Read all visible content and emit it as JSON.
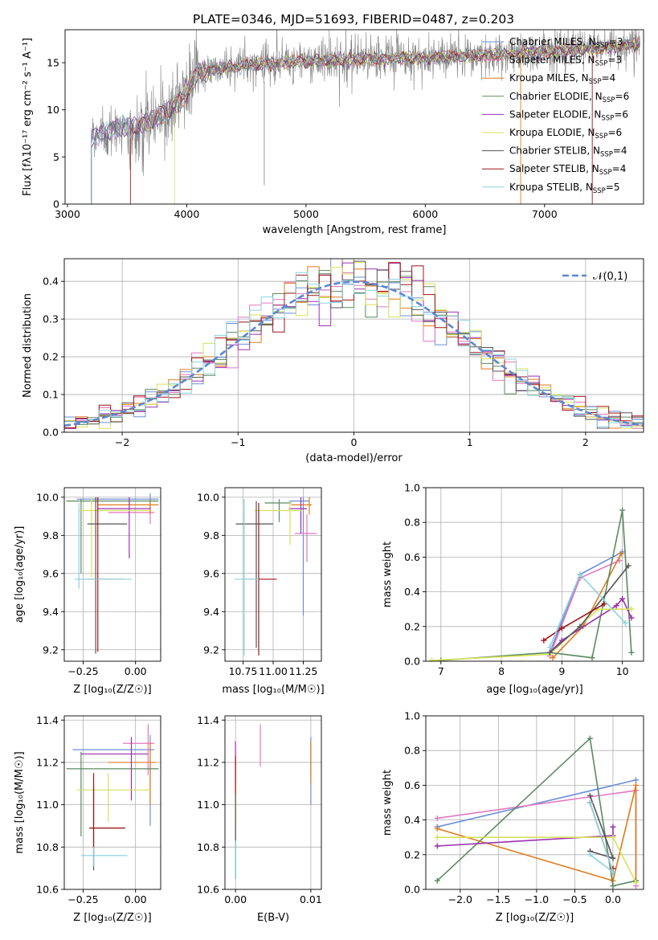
{
  "figure_title": "PLATE=0346, MJD=51693, FIBERID=0487, z=0.203",
  "legend_models": [
    {
      "name": "Chabrier MILES",
      "nssp": "3",
      "color": "#6a8fd8"
    },
    {
      "name": "Salpeter MILES",
      "nssp": "3",
      "color": "#e377c2"
    },
    {
      "name": "Kroupa MILES",
      "nssp": "4",
      "color": "#e07b1a"
    },
    {
      "name": "Chabrier ELODIE",
      "nssp": "6",
      "color": "#5b8a60"
    },
    {
      "name": "Salpeter ELODIE",
      "nssp": "6",
      "color": "#9b30b0"
    },
    {
      "name": "Kroupa ELODIE",
      "nssp": "6",
      "color": "#d7e05a"
    },
    {
      "name": "Chabrier STELIB",
      "nssp": "4",
      "color": "#555555"
    },
    {
      "name": "Salpeter STELIB",
      "nssp": "4",
      "color": "#a01515"
    },
    {
      "name": "Kroupa STELIB",
      "nssp": "5",
      "color": "#8bd3e0"
    }
  ],
  "nssp_prefix": "N",
  "nssp_sub": "SSP",
  "chart_data": [
    {
      "id": "spectrum",
      "type": "line",
      "xlabel": "wavelength [Angstrom, rest frame]",
      "ylabel": "Flux [f_λ 10^-17 erg cm^-2 s^-1 A^-1]",
      "xlim": [
        2980,
        7830
      ],
      "ylim": [
        0,
        18.5
      ],
      "xticks": [
        3000,
        4000,
        5000,
        6000,
        7000
      ],
      "yticks": [
        0,
        5,
        10,
        15
      ],
      "continuum_x": [
        3200,
        3400,
        3600,
        3800,
        3950,
        4100,
        4500,
        5000,
        5500,
        6000,
        6500,
        7000,
        7400,
        7800
      ],
      "continuum_y": [
        7.0,
        8.0,
        8.3,
        9.5,
        11.0,
        14.0,
        14.8,
        15.2,
        15.4,
        15.5,
        15.8,
        16.2,
        16.5,
        17.0
      ],
      "data_color": "#808080",
      "model_start_wavelengths": [
        3200,
        3200,
        3530,
        3200,
        3200,
        3900,
        3200,
        3530,
        3200
      ],
      "deep_feature_x": [
        4650
      ],
      "deep_feature_y": [
        2.0
      ]
    },
    {
      "id": "residual_hist",
      "type": "histogram",
      "xlabel": "(data-model)/error",
      "ylabel": "Normed distribution",
      "xlim": [
        -2.5,
        2.5
      ],
      "ylim": [
        0,
        0.46
      ],
      "xticks": [
        -2,
        -1,
        0,
        1,
        2
      ],
      "yticks": [
        0.0,
        0.1,
        0.2,
        0.3,
        0.4
      ],
      "bin_width": 0.1,
      "gaussian_label": "𝒩(0,1)",
      "gaussian_color": "#5b87d6"
    },
    {
      "id": "age_vs_Z",
      "type": "errorbar",
      "xlabel": "Z [log₁₀(Z/Z☉)]",
      "ylabel": "age [log₁₀(age/yr)]",
      "xlim": [
        -0.34,
        0.12
      ],
      "ylim": [
        9.14,
        10.05
      ],
      "xticks": [
        -0.25,
        0.0
      ],
      "xtick_labels": [
        "−0.25",
        "0.00"
      ],
      "yticks": [
        9.2,
        9.4,
        9.6,
        9.8,
        10.0
      ],
      "crosses": [
        {
          "c": 0,
          "x": 0.07,
          "y": 9.99,
          "xe": [
            0.35,
            0.04
          ],
          "ye": [
            0.07,
            0.03
          ]
        },
        {
          "c": 1,
          "x": 0.07,
          "y": 9.92,
          "xe": [
            0.2,
            0.02
          ],
          "ye": [
            0.06,
            0.06
          ]
        },
        {
          "c": 2,
          "x": 0.07,
          "y": 9.96,
          "xe": [
            0.25,
            0.04
          ],
          "ye": [
            0.05,
            0.03
          ]
        },
        {
          "c": 3,
          "x": -0.26,
          "y": 9.98,
          "xe": [
            0.07,
            0.37
          ],
          "ye": [
            0.38,
            0.01
          ]
        },
        {
          "c": 4,
          "x": -0.03,
          "y": 9.94,
          "xe": [
            0.15,
            0.1
          ],
          "ye": [
            0.26,
            0.06
          ]
        },
        {
          "c": 5,
          "x": -0.21,
          "y": 9.93,
          "xe": [
            0.06,
            0.28
          ],
          "ye": [
            0.35,
            0.07
          ]
        },
        {
          "c": 6,
          "x": -0.19,
          "y": 9.86,
          "xe": [
            0.04,
            0.15
          ],
          "ye": [
            0.68,
            0.14
          ]
        },
        {
          "c": 7,
          "x": -0.18,
          "y": 9.57,
          "xe": [
            0.06,
            0.12
          ],
          "ye": [
            0.38,
            0.43
          ]
        },
        {
          "c": 8,
          "x": -0.27,
          "y": 9.57,
          "xe": [
            0.02,
            0.25
          ],
          "ye": [
            0.05,
            0.4
          ]
        }
      ]
    },
    {
      "id": "age_vs_mass",
      "type": "errorbar",
      "xlabel": "mass [log₁₀(M/M☉)]",
      "ylabel": "",
      "xlim": [
        10.6,
        11.4
      ],
      "ylim": [
        9.14,
        10.05
      ],
      "xticks": [
        10.75,
        11.0,
        11.25
      ],
      "xtick_labels": [
        "10.75",
        "11.00",
        "11.25"
      ],
      "yticks": [
        9.2,
        9.4,
        9.6,
        9.8,
        10.0
      ],
      "crosses": [
        {
          "c": 0,
          "x": 11.25,
          "y": 9.98,
          "xe": [
            0.12,
            0.05
          ],
          "ye": [
            0.6,
            0.02
          ]
        },
        {
          "c": 1,
          "x": 11.28,
          "y": 9.81,
          "xe": [
            0.1,
            0.08
          ],
          "ye": [
            0.15,
            0.1
          ]
        },
        {
          "c": 2,
          "x": 11.3,
          "y": 9.96,
          "xe": [
            0.15,
            0.02
          ],
          "ye": [
            0.05,
            0.04
          ]
        },
        {
          "c": 3,
          "x": 11.05,
          "y": 9.97,
          "xe": [
            0.12,
            0.1
          ],
          "ye": [
            0.1,
            0.02
          ]
        },
        {
          "c": 4,
          "x": 11.23,
          "y": 9.94,
          "xe": [
            0.1,
            0.05
          ],
          "ye": [
            0.13,
            0.06
          ]
        },
        {
          "c": 5,
          "x": 11.14,
          "y": 9.93,
          "xe": [
            0.3,
            0.1
          ],
          "ye": [
            0.18,
            0.05
          ]
        },
        {
          "c": 6,
          "x": 10.86,
          "y": 9.86,
          "xe": [
            0.17,
            0.14
          ],
          "ye": [
            0.65,
            0.12
          ]
        },
        {
          "c": 7,
          "x": 10.88,
          "y": 9.57,
          "xe": [
            0.12,
            0.15
          ],
          "ye": [
            0.4,
            0.4
          ]
        },
        {
          "c": 8,
          "x": 10.76,
          "y": 9.57,
          "xe": [
            0.08,
            0.12
          ],
          "ye": [
            0.4,
            0.42
          ]
        }
      ]
    },
    {
      "id": "weight_vs_age",
      "type": "line",
      "xlabel": "age [log₁₀(age/yr)]",
      "ylabel": "mass weight",
      "xlim": [
        6.75,
        10.35
      ],
      "ylim": [
        0,
        1.0
      ],
      "xticks": [
        7,
        8,
        9,
        10
      ],
      "yticks": [
        0.0,
        0.2,
        0.4,
        0.6,
        0.8,
        1.0
      ],
      "series": [
        {
          "c": 0,
          "x": [
            8.8,
            9.3,
            10.0
          ],
          "y": [
            0.05,
            0.5,
            0.63
          ]
        },
        {
          "c": 1,
          "x": [
            8.8,
            9.3,
            9.95
          ],
          "y": [
            0.03,
            0.48,
            0.58
          ]
        },
        {
          "c": 2,
          "x": [
            8.85,
            9.35,
            9.98
          ],
          "y": [
            0.02,
            0.2,
            0.62
          ]
        },
        {
          "c": 3,
          "x": [
            7.0,
            8.8,
            9.5,
            10.0,
            10.15
          ],
          "y": [
            0.005,
            0.05,
            0.02,
            0.87,
            0.05
          ]
        },
        {
          "c": 4,
          "x": [
            8.8,
            9.0,
            9.9,
            10.0,
            10.15
          ],
          "y": [
            0.05,
            0.12,
            0.32,
            0.36,
            0.25
          ]
        },
        {
          "c": 5,
          "x": [
            6.85,
            8.8,
            9.6,
            10.15
          ],
          "y": [
            0.005,
            0.04,
            0.3,
            0.3
          ]
        },
        {
          "c": 6,
          "x": [
            8.8,
            9.3,
            10.1
          ],
          "y": [
            0.05,
            0.2,
            0.55
          ]
        },
        {
          "c": 7,
          "x": [
            8.7,
            9.0,
            9.7
          ],
          "y": [
            0.12,
            0.19,
            0.33
          ]
        },
        {
          "c": 8,
          "x": [
            8.8,
            9.3,
            10.05
          ],
          "y": [
            0.08,
            0.5,
            0.22
          ]
        }
      ]
    },
    {
      "id": "mass_vs_Z",
      "type": "errorbar",
      "xlabel": "Z [log₁₀(Z/Z☉)]",
      "ylabel": "mass [log₁₀(M/M☉)]",
      "xlim": [
        -0.34,
        0.12
      ],
      "ylim": [
        10.6,
        11.42
      ],
      "xticks": [
        -0.25,
        0.0
      ],
      "xtick_labels": [
        "−0.25",
        "0.00"
      ],
      "yticks": [
        10.6,
        10.8,
        11.0,
        11.2,
        11.4
      ],
      "crosses": [
        {
          "c": 0,
          "x": 0.07,
          "y": 11.26,
          "xe": [
            0.37,
            0.02
          ],
          "ye": [
            0.36,
            0.07
          ]
        },
        {
          "c": 1,
          "x": 0.06,
          "y": 11.29,
          "xe": [
            0.12,
            0.03
          ],
          "ye": [
            0.15,
            0.09
          ]
        },
        {
          "c": 2,
          "x": 0.07,
          "y": 11.2,
          "xe": [
            0.2,
            0.03
          ],
          "ye": [
            0.2,
            0.1
          ]
        },
        {
          "c": 3,
          "x": -0.26,
          "y": 11.17,
          "xe": [
            0.07,
            0.37
          ],
          "ye": [
            0.32,
            0.08
          ]
        },
        {
          "c": 4,
          "x": -0.02,
          "y": 11.24,
          "xe": [
            0.24,
            0.08
          ],
          "ye": [
            0.22,
            0.08
          ]
        },
        {
          "c": 5,
          "x": -0.13,
          "y": 11.07,
          "xe": [
            0.15,
            0.2
          ],
          "ye": [
            0.15,
            0.08
          ]
        },
        {
          "c": 6,
          "x": -0.2,
          "y": 10.89,
          "xe": [
            0.02,
            0.15
          ],
          "ye": [
            0.2,
            0.2
          ]
        },
        {
          "c": 7,
          "x": -0.2,
          "y": 10.89,
          "xe": [
            0.02,
            0.15
          ],
          "ye": [
            0.18,
            0.26
          ]
        },
        {
          "c": 8,
          "x": -0.2,
          "y": 10.76,
          "xe": [
            0.06,
            0.16
          ],
          "ye": [
            0.05,
            0.04
          ]
        }
      ]
    },
    {
      "id": "mass_vs_EBV",
      "type": "errorbar",
      "xlabel": "E(B-V)",
      "ylabel": "",
      "xlim": [
        -0.0014,
        0.0114
      ],
      "ylim": [
        10.6,
        11.42
      ],
      "xticks": [
        0.0,
        0.01
      ],
      "xtick_labels": [
        "0.00",
        "0.01"
      ],
      "yticks": [
        10.6,
        10.8,
        11.0,
        11.2,
        11.4
      ],
      "crosses": [
        {
          "c": 0,
          "x": 0.01,
          "y": 11.1,
          "xe": [
            0,
            0
          ],
          "ye": [
            0.1,
            0.22
          ]
        },
        {
          "c": 1,
          "x": 0.0033,
          "y": 11.28,
          "xe": [
            0,
            0
          ],
          "ye": [
            0.1,
            0.1
          ]
        },
        {
          "c": 2,
          "x": 0.01,
          "y": 11.2,
          "xe": [
            0,
            0
          ],
          "ye": [
            0.1,
            0.1
          ]
        },
        {
          "c": 3,
          "x": 0.0,
          "y": 11.0,
          "xe": [
            0,
            0
          ],
          "ye": [
            0.35,
            0.1
          ]
        },
        {
          "c": 4,
          "x": 0.0,
          "y": 11.2,
          "xe": [
            0,
            0
          ],
          "ye": [
            0.1,
            0.1
          ]
        },
        {
          "c": 5,
          "x": 0.0,
          "y": 11.0,
          "xe": [
            0,
            0
          ],
          "ye": [
            0.1,
            0.1
          ]
        },
        {
          "c": 6,
          "x": 0.0,
          "y": 10.9,
          "xe": [
            0,
            0
          ],
          "ye": [
            0.25,
            0.15
          ]
        },
        {
          "c": 7,
          "x": 0.0,
          "y": 11.15,
          "xe": [
            0,
            0
          ],
          "ye": [
            0.1,
            0.08
          ]
        },
        {
          "c": 8,
          "x": 0.0,
          "y": 10.75,
          "xe": [
            0,
            0
          ],
          "ye": [
            0.1,
            0.08
          ]
        }
      ]
    },
    {
      "id": "weight_vs_Z",
      "type": "line",
      "xlabel": "Z [log₁₀(Z/Z☉)]",
      "ylabel": "mass weight",
      "xlim": [
        -2.45,
        0.4
      ],
      "ylim": [
        0,
        1.0
      ],
      "xticks": [
        -2.0,
        -1.5,
        -1.0,
        -0.5,
        0.0
      ],
      "xtick_labels": [
        "−2.0",
        "−1.5",
        "−1.0",
        "−0.5",
        "0.0"
      ],
      "yticks": [
        0.0,
        0.2,
        0.4,
        0.6,
        0.8,
        1.0
      ],
      "series": [
        {
          "c": 0,
          "x": [
            -2.3,
            0.3
          ],
          "y": [
            0.36,
            0.63
          ]
        },
        {
          "c": 1,
          "x": [
            -2.3,
            0.3,
            0.3
          ],
          "y": [
            0.41,
            0.57,
            0.02
          ]
        },
        {
          "c": 2,
          "x": [
            -2.3,
            0.0,
            0.3,
            0.3
          ],
          "y": [
            0.35,
            0.05,
            0.6,
            0.05
          ]
        },
        {
          "c": 3,
          "x": [
            -2.3,
            -0.3,
            0.0,
            0.3
          ],
          "y": [
            0.05,
            0.87,
            0.02,
            0.05
          ]
        },
        {
          "c": 4,
          "x": [
            -2.3,
            0.0,
            0.0
          ],
          "y": [
            0.25,
            0.31,
            0.36
          ]
        },
        {
          "c": 5,
          "x": [
            -2.3,
            0.0,
            0.3
          ],
          "y": [
            0.3,
            0.3,
            0.04
          ]
        },
        {
          "c": 6,
          "x": [
            -0.3,
            0.0,
            -0.3
          ],
          "y": [
            0.54,
            0.18,
            0.22
          ]
        },
        {
          "c": 7,
          "x": [
            -0.3,
            0.0,
            0.0
          ],
          "y": [
            0.5,
            0.1,
            0.12
          ]
        },
        {
          "c": 8,
          "x": [
            -0.3,
            0.0,
            -0.3
          ],
          "y": [
            0.5,
            0.1,
            0.2
          ]
        }
      ]
    }
  ]
}
